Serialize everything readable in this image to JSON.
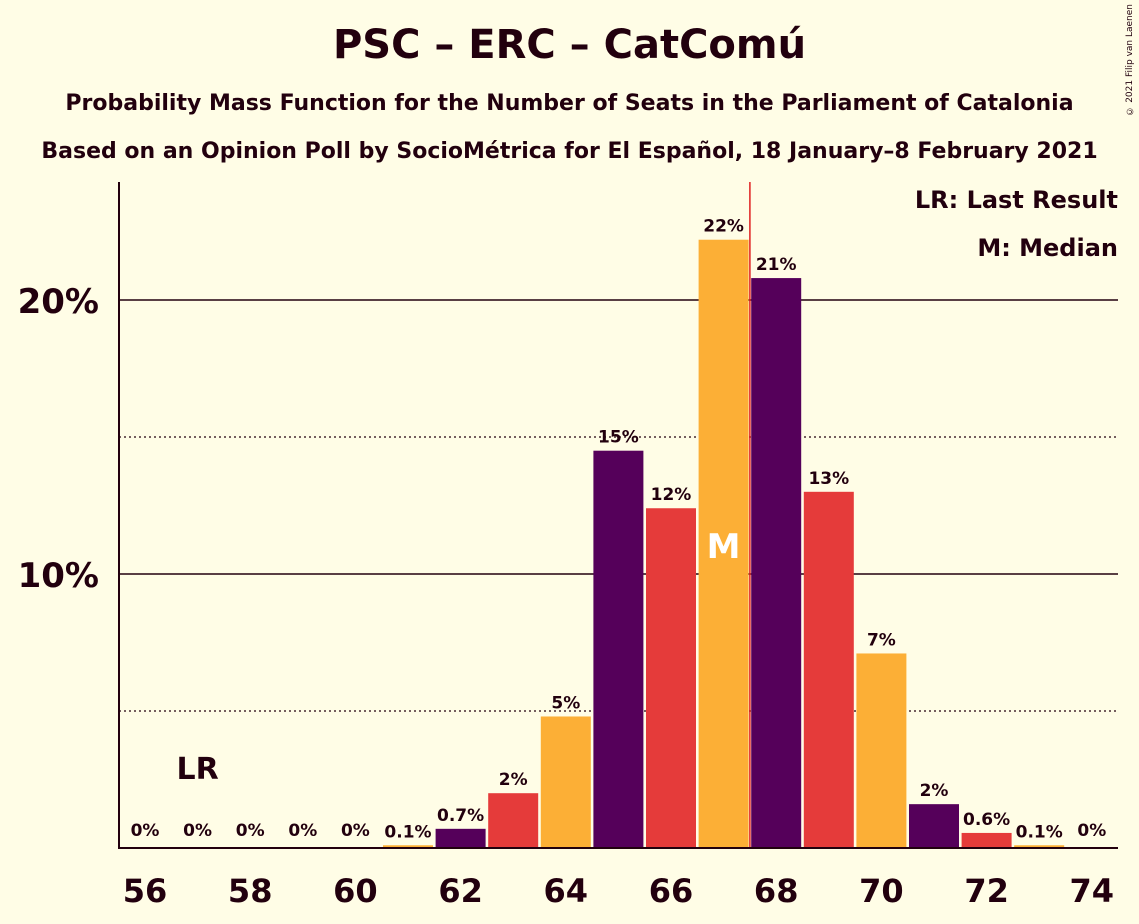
{
  "chart_data": {
    "type": "bar",
    "title": "PSC – ERC – CatComú",
    "subtitle": "Probability Mass Function for the Number of Seats in the Parliament of Catalonia",
    "subtitle2": "Based on an Opinion Poll by SocioMétrica for El Español, 18 January–8 February 2021",
    "copyright": "© 2021 Filip van Laenen",
    "legend": {
      "last_result": "LR: Last Result",
      "median": "M: Median",
      "position": "top-right"
    },
    "categories": [
      56,
      57,
      58,
      59,
      60,
      61,
      62,
      63,
      64,
      65,
      66,
      67,
      68,
      69,
      70,
      71,
      72,
      73,
      74
    ],
    "values": [
      0,
      0,
      0,
      0,
      0,
      0.1,
      0.7,
      2,
      4.8,
      14.5,
      12.4,
      22.2,
      20.8,
      13,
      7.1,
      1.6,
      0.55,
      0.1,
      0
    ],
    "labels": [
      "0%",
      "0%",
      "0%",
      "0%",
      "0%",
      "0.1%",
      "0.7%",
      "2%",
      "5%",
      "15%",
      "12%",
      "22%",
      "21%",
      "13%",
      "7%",
      "2%",
      "0.6%",
      "0.1%",
      "0%"
    ],
    "x_tick_labels": [
      "56",
      "58",
      "60",
      "62",
      "64",
      "66",
      "68",
      "70",
      "72",
      "74"
    ],
    "x_ticks": [
      56,
      58,
      60,
      62,
      64,
      66,
      68,
      70,
      72,
      74
    ],
    "y_tick_labels": [
      "10%",
      "20%"
    ],
    "y_ticks": [
      10,
      20
    ],
    "y_minor_ticks": [
      5,
      15
    ],
    "ylim": [
      0,
      24.2
    ],
    "xlim": [
      55.5,
      74.5
    ],
    "last_result": {
      "seat": 57,
      "label": "LR"
    },
    "median": {
      "seat": 67,
      "label": "M",
      "line_at": 67.5
    },
    "colors": [
      "#55005A",
      "#E53B3A",
      "#FCAF36"
    ],
    "median_line_color": "#E02020",
    "grid": true
  }
}
